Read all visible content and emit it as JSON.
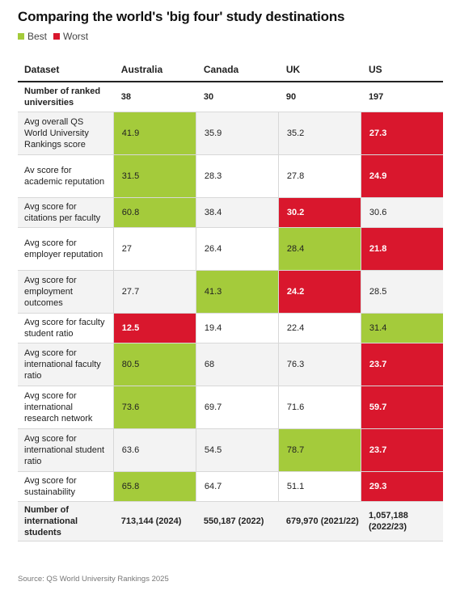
{
  "title": "Comparing the world's 'big four' study destinations",
  "legend": [
    {
      "label": "Best",
      "color": "#a4cb3b"
    },
    {
      "label": "Worst",
      "color": "#d9172d"
    }
  ],
  "source": "Source: QS World University Rankings 2025",
  "colors": {
    "best": "#a4cb3b",
    "worst": "#d9172d",
    "shade": "#f3f3f3"
  },
  "chart_data": {
    "type": "table",
    "columns": [
      "Dataset",
      "Australia",
      "Canada",
      "UK",
      "US"
    ],
    "rows": [
      {
        "label": "Number of ranked universities",
        "values": [
          "38",
          "30",
          "90",
          "197"
        ],
        "highlight": [
          "",
          "",
          "",
          ""
        ],
        "bold": true
      },
      {
        "label": "Avg overall QS World University Rankings score",
        "values": [
          "41.9",
          "35.9",
          "35.2",
          "27.3"
        ],
        "highlight": [
          "best",
          "",
          "",
          "worst"
        ]
      },
      {
        "label": "Av score for academic reputation",
        "values": [
          "31.5",
          "28.3",
          "27.8",
          "24.9"
        ],
        "highlight": [
          "best",
          "",
          "",
          "worst"
        ]
      },
      {
        "label": "Avg score for citations per faculty",
        "values": [
          "60.8",
          "38.4",
          "30.2",
          "30.6"
        ],
        "highlight": [
          "best",
          "",
          "worst",
          ""
        ]
      },
      {
        "label": "Avg score for employer reputation",
        "values": [
          "27",
          "26.4",
          "28.4",
          "21.8"
        ],
        "highlight": [
          "",
          "",
          "best",
          "worst"
        ]
      },
      {
        "label": "Avg score for employment outcomes",
        "values": [
          "27.7",
          "41.3",
          "24.2",
          "28.5"
        ],
        "highlight": [
          "",
          "best",
          "worst",
          ""
        ]
      },
      {
        "label": "Avg score for faculty student ratio",
        "values": [
          "12.5",
          "19.4",
          "22.4",
          "31.4"
        ],
        "highlight": [
          "worst",
          "",
          "",
          "best"
        ]
      },
      {
        "label": "Avg score for international faculty ratio",
        "values": [
          "80.5",
          "68",
          "76.3",
          "23.7"
        ],
        "highlight": [
          "best",
          "",
          "",
          "worst"
        ]
      },
      {
        "label": "Avg score for international research network",
        "values": [
          "73.6",
          "69.7",
          "71.6",
          "59.7"
        ],
        "highlight": [
          "best",
          "",
          "",
          "worst"
        ]
      },
      {
        "label": "Avg score for international student ratio",
        "values": [
          "63.6",
          "54.5",
          "78.7",
          "23.7"
        ],
        "highlight": [
          "",
          "",
          "best",
          "worst"
        ]
      },
      {
        "label": "Avg score for sustainability",
        "values": [
          "65.8",
          "64.7",
          "51.1",
          "29.3"
        ],
        "highlight": [
          "best",
          "",
          "",
          "worst"
        ]
      },
      {
        "label": "Number of international students",
        "values": [
          "713,144 (2024)",
          "550,187 (2022)",
          "679,970 (2021/22)",
          "1,057,188 (2022/23)"
        ],
        "highlight": [
          "",
          "",
          "",
          ""
        ],
        "bold": true
      }
    ]
  }
}
